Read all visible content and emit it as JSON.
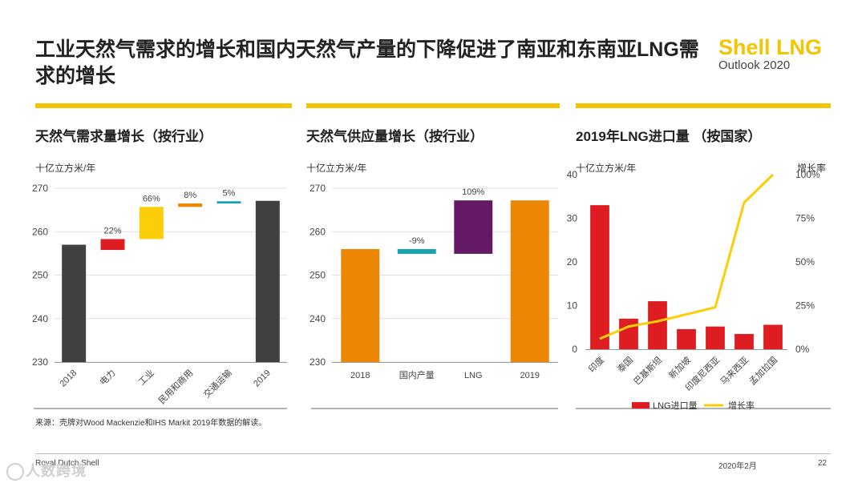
{
  "title": "工业天然气需求的增长和国内天然气产量的下降促进了南亚和东南亚LNG需求的增长",
  "logo": {
    "main": "Shell LNG",
    "sub": "Outlook 2020"
  },
  "colors": {
    "accent": "#f5c400",
    "dark": "#404040",
    "red": "#dd1d21",
    "orange": "#eb8705",
    "yellow": "#fbce07",
    "teal": "#16a3b1",
    "purple": "#641964"
  },
  "chart_data": [
    {
      "type": "bar",
      "subtype": "waterfall",
      "title": "天然气需求量增长（按行业）",
      "ylabel": "十亿立方米/年",
      "ylim": [
        230,
        270
      ],
      "yticks": [
        230,
        240,
        250,
        260,
        270
      ],
      "categories": [
        "2018",
        "电力",
        "工业",
        "民用和商用",
        "交通运输",
        "2019"
      ],
      "bars": [
        {
          "category": "2018",
          "low": 230,
          "high": 257,
          "color": "#404040",
          "label": ""
        },
        {
          "category": "电力",
          "low": 255.8,
          "high": 258.3,
          "color": "#dd1d21",
          "label": "22%"
        },
        {
          "category": "工业",
          "low": 258.3,
          "high": 265.7,
          "color": "#fbce07",
          "label": "66%"
        },
        {
          "category": "民用和商用",
          "low": 265.7,
          "high": 266.5,
          "color": "#eb8705",
          "label": "8%"
        },
        {
          "category": "交通运输",
          "low": 266.5,
          "high": 267.0,
          "color": "#16a3b1",
          "label": "5%"
        },
        {
          "category": "2019",
          "low": 230,
          "high": 267.1,
          "color": "#404040",
          "label": ""
        }
      ]
    },
    {
      "type": "bar",
      "subtype": "waterfall",
      "title": "天然气供应量增长（按行业）",
      "ylabel": "十亿立方米/年",
      "ylim": [
        230,
        270
      ],
      "yticks": [
        230,
        240,
        250,
        260,
        270
      ],
      "categories": [
        "2018",
        "国内产量",
        "LNG",
        "2019"
      ],
      "bars": [
        {
          "category": "2018",
          "low": 230,
          "high": 256,
          "color": "#eb8705",
          "label": ""
        },
        {
          "category": "国内产量",
          "low": 254.9,
          "high": 256,
          "color": "#16a3b1",
          "label": "-9%"
        },
        {
          "category": "LNG",
          "low": 254.9,
          "high": 267.2,
          "color": "#641964",
          "label": "109%"
        },
        {
          "category": "2019",
          "low": 230,
          "high": 267.2,
          "color": "#eb8705",
          "label": ""
        }
      ]
    },
    {
      "type": "bar",
      "subtype": "bar+line",
      "title": "2019年LNG进口量 （按国家）",
      "ylabel": "十亿立方米/年",
      "y2label": "增长率",
      "ylim": [
        0,
        40
      ],
      "yticks": [
        0,
        10,
        20,
        30,
        40
      ],
      "y2lim": [
        0,
        100
      ],
      "y2ticks": [
        "0%",
        "25%",
        "50%",
        "75%",
        "100%"
      ],
      "categories": [
        "印度",
        "泰国",
        "巴基斯坦",
        "新加坡",
        "印度尼西亚",
        "马来西亚",
        "孟加拉国"
      ],
      "series": [
        {
          "name": "LNG进口量",
          "type": "bar",
          "color": "#dd1d21",
          "values": [
            33,
            7,
            11,
            4.6,
            5.2,
            3.5,
            5.6
          ]
        },
        {
          "name": "增长率",
          "type": "line",
          "color": "#fbce07",
          "values": [
            6,
            13,
            16,
            20,
            24,
            84,
            100
          ]
        }
      ],
      "legend": [
        "LNG进口量",
        "增长率"
      ]
    }
  ],
  "source": "来源：壳牌对Wood Mackenzie和IHS Markit 2019年数据的解读。",
  "company": "Royal Dutch Shell",
  "date": "2020年2月",
  "page": "22",
  "watermark": "人数跨境"
}
